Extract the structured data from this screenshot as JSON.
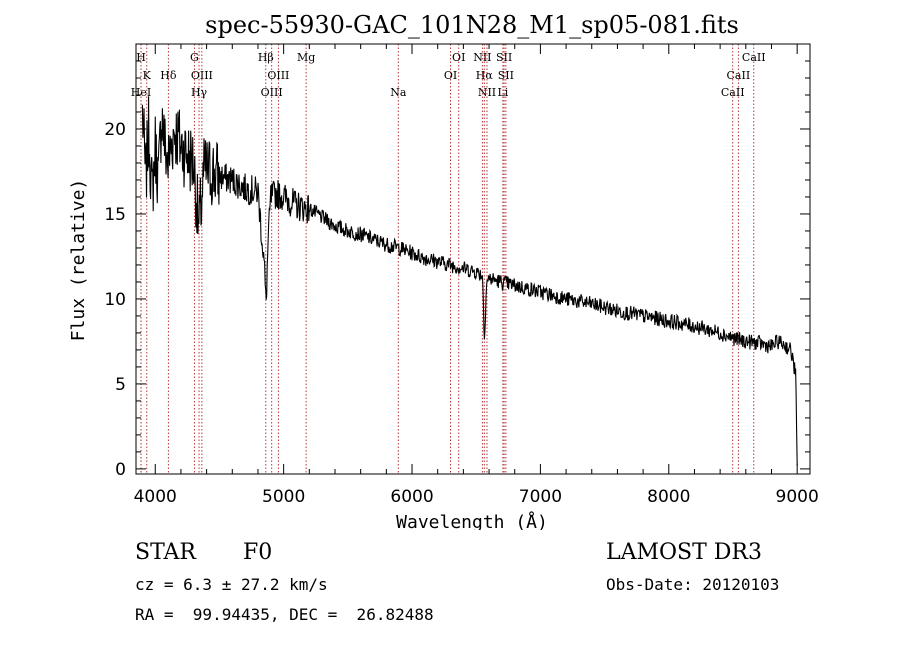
{
  "chart_data": {
    "type": "line",
    "title": "spec-55930-GAC_101N28_M1_sp05-081.fits",
    "xlabel": "Wavelength (Å)",
    "ylabel": "Flux (relative)",
    "xlim": [
      3850,
      9100
    ],
    "ylim": [
      -0.3,
      25
    ],
    "xticks": [
      4000,
      5000,
      6000,
      7000,
      8000,
      9000
    ],
    "yticks": [
      0,
      5,
      10,
      15,
      20
    ],
    "grid": false,
    "series": [
      {
        "name": "spectrum",
        "x": [
          3900,
          3925,
          3950,
          3975,
          4000,
          4025,
          4050,
          4075,
          4100,
          4150,
          4200,
          4250,
          4300,
          4340,
          4380,
          4450,
          4500,
          4600,
          4700,
          4800,
          4850,
          4862,
          4880,
          4900,
          4950,
          5000,
          5100,
          5200,
          5300,
          5400,
          5500,
          5600,
          5700,
          5800,
          5900,
          6000,
          6100,
          6200,
          6300,
          6400,
          6500,
          6550,
          6563,
          6580,
          6600,
          6700,
          6800,
          6900,
          7000,
          7200,
          7400,
          7600,
          7800,
          8000,
          8200,
          8400,
          8500,
          8600,
          8700,
          8800,
          8850,
          8900,
          8950,
          8990,
          9000
        ],
        "y": [
          21,
          17,
          20,
          16,
          19,
          17,
          21,
          19,
          18,
          20,
          19,
          18.5,
          18,
          14,
          17.5,
          17.5,
          17.2,
          17,
          16.5,
          16.3,
          12,
          9.5,
          13.5,
          16,
          16.2,
          16,
          15.5,
          15.3,
          14.8,
          14.3,
          14,
          13.8,
          13.5,
          13.2,
          13,
          12.7,
          12.4,
          12.2,
          12,
          11.8,
          11.6,
          11.4,
          7.5,
          11,
          11.2,
          11,
          10.8,
          10.6,
          10.4,
          10,
          9.7,
          9.3,
          9,
          8.7,
          8.4,
          8,
          7.7,
          7.5,
          7.4,
          7.2,
          7.5,
          7.3,
          7,
          5.5,
          0.2
        ]
      }
    ],
    "lines": [
      {
        "label": "H",
        "x": 3889,
        "row": 0
      },
      {
        "label": "K",
        "x": 3934,
        "row": 1
      },
      {
        "label": "HeI",
        "x": 3889,
        "row": 2
      },
      {
        "label": "Hδ",
        "x": 4102,
        "row": 1
      },
      {
        "label": "G",
        "x": 4305,
        "row": 0
      },
      {
        "label": "OIII",
        "x": 4363,
        "row": 1
      },
      {
        "label": "Hγ",
        "x": 4341,
        "row": 2
      },
      {
        "label": "Hβ",
        "x": 4861,
        "row": 0
      },
      {
        "label": "OIII",
        "x": 4959,
        "row": 1
      },
      {
        "label": "OIII",
        "x": 4907,
        "row": 2
      },
      {
        "label": "Mg",
        "x": 5175,
        "row": 0
      },
      {
        "label": "Na",
        "x": 5893,
        "row": 2
      },
      {
        "label": "OI",
        "x": 6364,
        "row": 0
      },
      {
        "label": "OI",
        "x": 6300,
        "row": 1
      },
      {
        "label": "NII",
        "x": 6548,
        "row": 0
      },
      {
        "label": "SII",
        "x": 6717,
        "row": 0
      },
      {
        "label": "Hα",
        "x": 6563,
        "row": 1
      },
      {
        "label": "SII",
        "x": 6731,
        "row": 1
      },
      {
        "label": "NII",
        "x": 6584,
        "row": 2
      },
      {
        "label": "Li",
        "x": 6708,
        "row": 2
      },
      {
        "label": "CaII",
        "x": 8662,
        "row": 0
      },
      {
        "label": "CaII",
        "x": 8542,
        "row": 1
      },
      {
        "label": "CaII",
        "x": 8498,
        "row": 2
      }
    ]
  },
  "footer": {
    "object_class": "STAR",
    "subclass": "F0",
    "survey": "LAMOST DR3",
    "redshift": "cz = 6.3 ± 27.2 km/s",
    "obs_date": "Obs-Date: 20120103",
    "coords": "RA =  99.94435, DEC =  26.82488"
  },
  "colors": {
    "spectrum": "#000000",
    "line_marker": "#b22222",
    "axis": "#000000"
  }
}
